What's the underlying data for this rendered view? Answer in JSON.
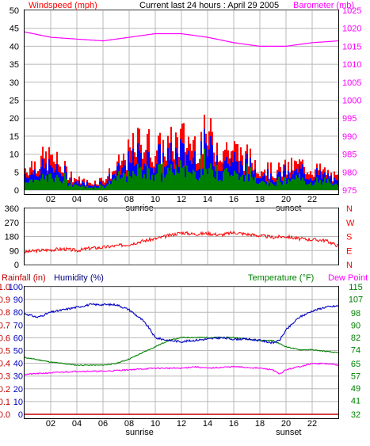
{
  "header": {
    "left_label": "Windspeed (mph)",
    "center_label": "Current last 24 hours : April 29 2005",
    "right_label": "Barometer (mb)"
  },
  "colors": {
    "wind_red": "#ff0000",
    "wind_blue": "#0000ff",
    "wind_green": "#008000",
    "barometer": "#ff00ff",
    "humidity": "#0000c0",
    "dewpoint": "#ff00ff",
    "temperature": "#008000",
    "rain": "#c00000",
    "grid": "#b8b8b8",
    "axis_text_dark": "#000080"
  },
  "chart_data": [
    {
      "type": "bar",
      "title": "",
      "left_axis": {
        "label": "Windspeed (mph)",
        "ticks": [
          0,
          5,
          10,
          15,
          20,
          25,
          30,
          35,
          40,
          45,
          50
        ],
        "range": [
          0,
          50
        ]
      },
      "right_axis": {
        "label": "Barometer (mb)",
        "ticks": [
          975,
          980,
          985,
          990,
          995,
          1000,
          1005,
          1010,
          1015,
          1020,
          1025
        ],
        "range": [
          975,
          1025
        ]
      },
      "x_ticks": [
        "02",
        "04",
        "06",
        "08",
        "10",
        "12",
        "14",
        "16",
        "18",
        "20",
        "22"
      ],
      "x_range_hours": [
        0,
        24
      ],
      "markers": [
        {
          "label": "sunrise",
          "hour": 8.8
        },
        {
          "label": "sunset",
          "hour": 20.2
        }
      ],
      "series": [
        {
          "name": "Windspeed (mph)",
          "color": "#ff0000",
          "hours": [
            0,
            1,
            2,
            3,
            4,
            5,
            6,
            7,
            8,
            9,
            10,
            11,
            12,
            13,
            14,
            15,
            16,
            17,
            18,
            19,
            20,
            21,
            22,
            23,
            24
          ],
          "values": [
            6,
            8,
            9,
            6,
            3,
            2,
            3,
            6,
            10,
            14,
            11,
            12,
            14,
            13,
            15,
            12,
            11,
            9,
            7,
            5,
            6,
            7,
            6,
            5,
            3
          ]
        },
        {
          "name": "Barometer (mb)",
          "color": "#ff00ff",
          "axis": "right",
          "hours": [
            0,
            2,
            4,
            6,
            8,
            10,
            12,
            14,
            16,
            18,
            20,
            22,
            24
          ],
          "values": [
            1019,
            1017.5,
            1017,
            1016.5,
            1017.5,
            1018.5,
            1018.5,
            1017.5,
            1016,
            1015,
            1015,
            1016,
            1016.5
          ]
        }
      ]
    },
    {
      "type": "line",
      "title": "",
      "left_axis": {
        "ticks": [
          0,
          90,
          180,
          270,
          360
        ],
        "range": [
          0,
          360
        ]
      },
      "right_axis": {
        "ticks": [
          "N",
          "W",
          "S",
          "E",
          "N"
        ]
      },
      "x_range_hours": [
        0,
        24
      ],
      "series": [
        {
          "name": "Wind direction",
          "color": "#ff0000",
          "hours": [
            0,
            1,
            2,
            3,
            4,
            5,
            6,
            7,
            8,
            9,
            10,
            11,
            12,
            13,
            14,
            15,
            16,
            17,
            18,
            19,
            20,
            21,
            22,
            23,
            24
          ],
          "values": [
            80,
            90,
            95,
            100,
            90,
            105,
            110,
            120,
            130,
            150,
            165,
            185,
            205,
            195,
            200,
            190,
            205,
            195,
            185,
            175,
            180,
            165,
            160,
            155,
            120
          ]
        }
      ]
    },
    {
      "type": "line",
      "title": "",
      "left_axis_rain": {
        "label": "Rainfall (in)",
        "ticks": [
          "0.0",
          "0.1",
          "0.2",
          "0.3",
          "0.4",
          "0.5",
          "0.6",
          "0.7",
          "0.8",
          "0.9",
          "1.0"
        ],
        "range": [
          0,
          1
        ]
      },
      "left_axis_humidity": {
        "label": "Humidity (%)",
        "ticks": [
          0,
          10,
          20,
          30,
          40,
          50,
          60,
          70,
          80,
          90,
          100
        ],
        "range": [
          0,
          100
        ]
      },
      "right_axis": {
        "label": "Temperature (°F)",
        "label2": "Dew Point",
        "ticks": [
          32,
          41,
          49,
          57,
          65,
          74,
          82,
          90,
          98,
          107,
          115
        ],
        "range": [
          32,
          115
        ]
      },
      "x_ticks": [
        "02",
        "04",
        "06",
        "08",
        "10",
        "12",
        "14",
        "16",
        "18",
        "20",
        "22"
      ],
      "x_range_hours": [
        0,
        24
      ],
      "markers": [
        {
          "label": "sunrise",
          "hour": 8.8
        },
        {
          "label": "sunset",
          "hour": 20.2
        }
      ],
      "series": [
        {
          "name": "Humidity (%)",
          "color": "#0000c0",
          "hours": [
            0,
            1,
            2,
            3,
            4,
            5,
            6,
            7,
            8,
            9,
            9.5,
            10,
            11,
            12,
            13,
            14,
            15,
            16,
            17,
            18,
            19,
            19.5,
            20,
            21,
            22,
            23,
            24
          ],
          "values": [
            79,
            76,
            80,
            82,
            84,
            86,
            86,
            86,
            82,
            74,
            68,
            60,
            58,
            57,
            58,
            59,
            60,
            59,
            59,
            58,
            56,
            58,
            66,
            76,
            81,
            84,
            85
          ]
        },
        {
          "name": "Temperature (°F)",
          "color": "#008000",
          "hours": [
            0,
            2,
            4,
            6,
            7,
            8,
            9,
            10,
            11,
            12,
            14,
            16,
            18,
            19,
            20,
            21,
            22,
            23,
            24
          ],
          "values": [
            69,
            66,
            64,
            64,
            65,
            68,
            72,
            76,
            80,
            82,
            82,
            82,
            80,
            80,
            76,
            74,
            74,
            73,
            72
          ]
        },
        {
          "name": "Dew Point",
          "color": "#ff00ff",
          "hours": [
            0,
            2,
            4,
            6,
            8,
            10,
            12,
            13,
            14,
            16,
            18,
            19,
            19.5,
            20,
            21,
            22,
            23,
            24
          ],
          "values": [
            58,
            59,
            60,
            60,
            61,
            62,
            62,
            63,
            62,
            63,
            62,
            61,
            58,
            61,
            63,
            65,
            65,
            64
          ]
        },
        {
          "name": "Rainfall (in)",
          "color": "#c00000",
          "hours": [
            0,
            24
          ],
          "values": [
            0,
            0
          ]
        }
      ]
    }
  ]
}
